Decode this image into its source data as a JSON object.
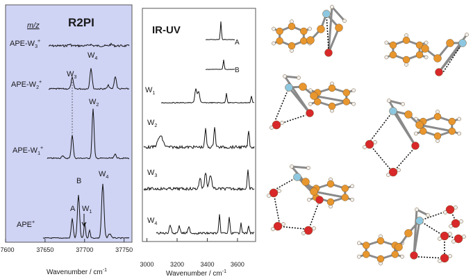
{
  "figure": {
    "r2pi": {
      "title": "R2PI",
      "axis_header": "m/z",
      "xlabel": "Wavenumber / cm",
      "xlabel_sup": "-1",
      "xticks": [
        "37600",
        "37650",
        "37700",
        "37750"
      ],
      "xrange": [
        37600,
        37760
      ],
      "traces": [
        {
          "label": "APE-W",
          "sub": "3",
          "sup": "+"
        },
        {
          "label": "APE-W",
          "sub": "2",
          "sup": "+"
        },
        {
          "label": "APE-W",
          "sub": "1",
          "sup": "+"
        },
        {
          "label": "APE",
          "sub": "",
          "sup": "+"
        }
      ],
      "peak_labels": [
        {
          "text": "W",
          "sub": "3"
        },
        {
          "text": "W",
          "sub": "4"
        },
        {
          "text": "W",
          "sub": "2"
        },
        {
          "text": "B",
          "sub": ""
        },
        {
          "text": "A",
          "sub": ""
        },
        {
          "text": "W",
          "sub": "1"
        },
        {
          "text": "W",
          "sub": "4"
        }
      ],
      "background": "#cfd3f4"
    },
    "iruv": {
      "title": "IR-UV",
      "xlabel": "Wavenumber / cm",
      "xlabel_sup": "-1",
      "xticks": [
        "3000",
        "3200",
        "3400",
        "3600"
      ],
      "xrange": [
        2970,
        3720
      ],
      "insets": [
        {
          "label": "A"
        },
        {
          "label": "B"
        }
      ],
      "traces": [
        {
          "label": "W",
          "sub": "1"
        },
        {
          "label": "W",
          "sub": "2"
        },
        {
          "label": "W",
          "sub": "3"
        },
        {
          "label": "W",
          "sub": "4"
        }
      ]
    },
    "atom_colors": {
      "carbon": "#e8962e",
      "nitrogen": "#8ec7e0",
      "oxygen": "#d8282a",
      "hydrogen": "#eeeeee",
      "bond": "#8a8a8a"
    }
  }
}
